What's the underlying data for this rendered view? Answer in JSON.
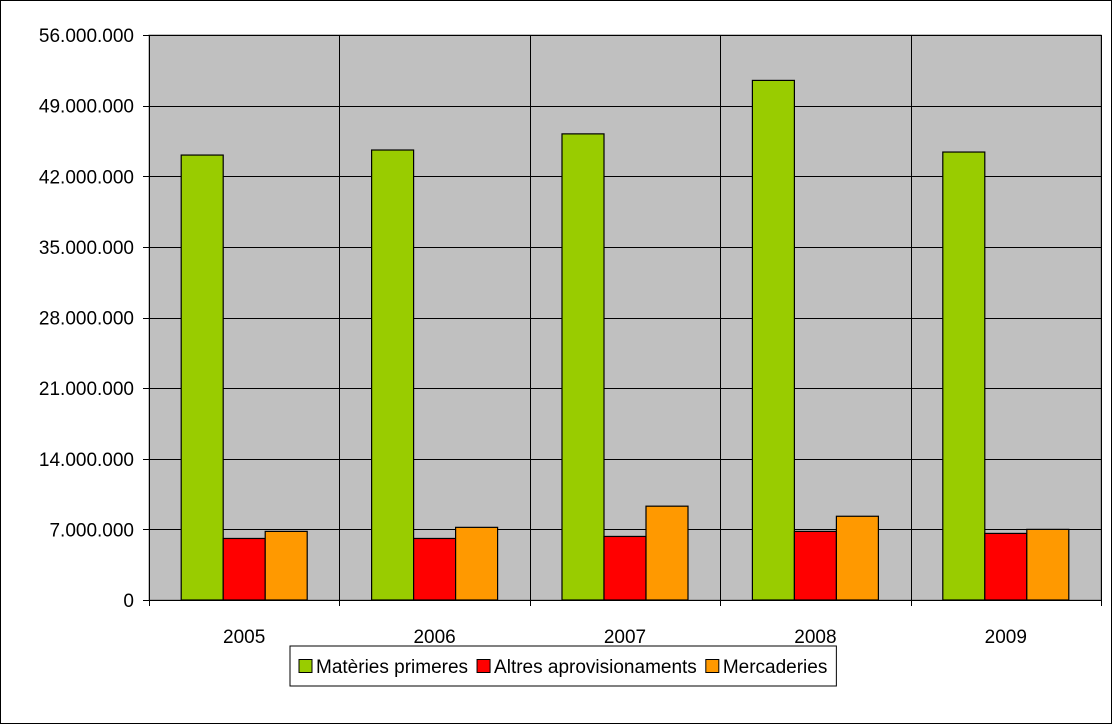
{
  "chart_data": {
    "type": "bar",
    "categories": [
      "2005",
      "2006",
      "2007",
      "2008",
      "2009"
    ],
    "series": [
      {
        "name": "Matèries primeres",
        "color": "#99cc00",
        "values": [
          44100000,
          44600000,
          46200000,
          51500000,
          44400000
        ]
      },
      {
        "name": "Altres aprovisionaments",
        "color": "#ff0000",
        "values": [
          6100000,
          6100000,
          6300000,
          6800000,
          6600000
        ]
      },
      {
        "name": "Mercaderies",
        "color": "#ff9900",
        "values": [
          6800000,
          7200000,
          9300000,
          8300000,
          7000000
        ]
      }
    ],
    "ylim": [
      0,
      56000000
    ],
    "yticks": [
      0,
      7000000,
      14000000,
      21000000,
      28000000,
      35000000,
      42000000,
      49000000,
      56000000
    ],
    "ytick_labels": [
      "0",
      "7.000.000",
      "14.000.000",
      "21.000.000",
      "28.000.000",
      "35.000.000",
      "42.000.000",
      "49.000.000",
      "56.000.000"
    ],
    "title": "",
    "xlabel": "",
    "ylabel": "",
    "grid": true,
    "plot_background": "#c0c0c0",
    "legend_position": "bottom"
  }
}
